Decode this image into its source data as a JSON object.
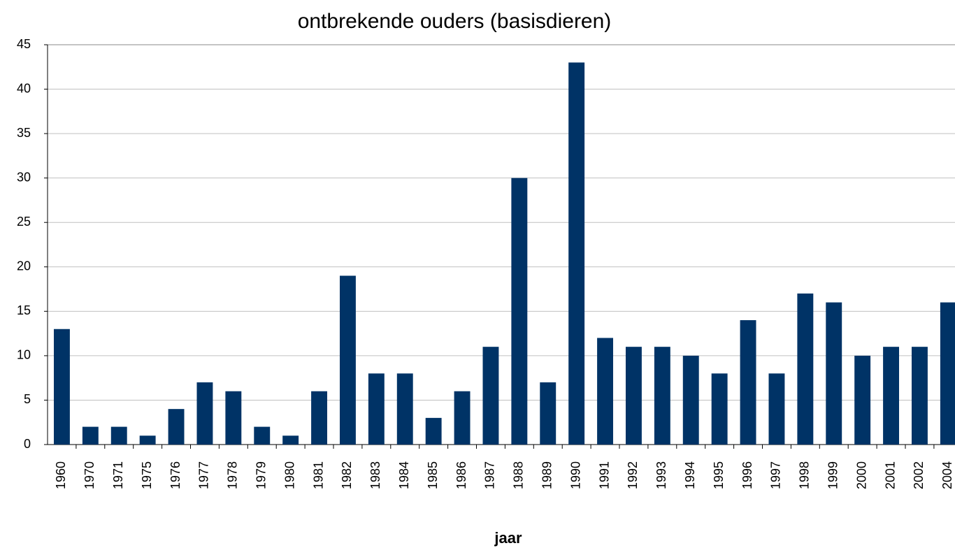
{
  "chart_data": {
    "type": "bar",
    "title": "ontbrekende ouders (basisdieren)",
    "x_label": "jaar",
    "categories": [
      "1960",
      "1970",
      "1971",
      "1975",
      "1976",
      "1977",
      "1978",
      "1979",
      "1980",
      "1981",
      "1982",
      "1983",
      "1984",
      "1985",
      "1986",
      "1987",
      "1988",
      "1989",
      "1990",
      "1991",
      "1992",
      "1993",
      "1994",
      "1995",
      "1996",
      "1997",
      "1998",
      "1999",
      "2000",
      "2001",
      "2002",
      "2004"
    ],
    "values": [
      13,
      2,
      2,
      1,
      4,
      7,
      6,
      2,
      1,
      6,
      19,
      8,
      8,
      3,
      6,
      11,
      30,
      7,
      43,
      12,
      11,
      11,
      10,
      8,
      14,
      8,
      17,
      16,
      10,
      11,
      11,
      16
    ],
    "color": "#003366",
    "ylim": [
      0,
      45
    ],
    "yticks": [
      0,
      5,
      10,
      15,
      20,
      25,
      30,
      35,
      40,
      45
    ],
    "grid": true
  }
}
